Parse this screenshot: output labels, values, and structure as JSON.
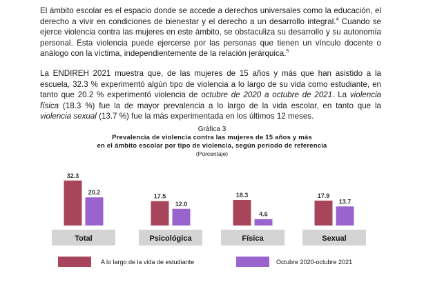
{
  "paragraphs": {
    "p1": {
      "a": "El ámbito escolar es el espacio donde se accede a derechos universales como la educación, el derecho a vivir en condiciones de bienestar y el derecho a un desarrollo integral.",
      "sup1": "4",
      "b": " Cuando se ejerce violencia contra las mujeres en este ámbito, se obstaculiza su desarrollo y su autonomía personal. Esta violencia puede ejercerse por las personas que tienen un vínculo docente o análogo con la víctima, independientemente de la relación jerárquica.",
      "sup2": "5"
    },
    "p2": {
      "a": "La ENDIREH 2021 muestra que, de las mujeres de 15 años y más que han asistido a la escuela, 32.3 % experimentó algún tipo de violencia a lo largo de su vida como estudiante, en tanto que 20.2 % experimentó violencia de ",
      "b_italic": "octubre de 2020 a octubre de 2021",
      "c": ". La ",
      "d_italic": "violencia física",
      "e": " (18.3 %) fue la de mayor prevalencia a lo largo de la vida escolar, en tanto que la ",
      "f_italic": "violencia sexual",
      "g": " (13.7 %) fue la más experimentada en los últimos 12 meses."
    }
  },
  "figure": {
    "label": "Gráfica 3",
    "title_line1": "Prevalencia de violencia contra las mujeres de 15 años y más",
    "title_line2": "en el ámbito escolar por tipo de violencia, según periodo de referencia",
    "unit": "(Porcentaje)"
  },
  "chart_data": {
    "type": "bar",
    "categories": [
      "Total",
      "Psicológica",
      "Física",
      "Sexual"
    ],
    "series": [
      {
        "name": "A lo largo de la vida de estudiante",
        "color": "#a8455a",
        "values": [
          32.3,
          17.5,
          18.3,
          17.9
        ]
      },
      {
        "name": "Octubre 2020-octubre 2021",
        "color": "#9a64cf",
        "values": [
          20.2,
          12.0,
          4.6,
          13.7
        ]
      }
    ],
    "value_labels": [
      [
        "32.3",
        "17.5",
        "18.3",
        "17.9"
      ],
      [
        "20.2",
        "12.0",
        "4.6",
        "13.7"
      ]
    ],
    "ylim": [
      0,
      35
    ],
    "grid": false,
    "legend_position": "bottom",
    "category_box_color": "#d4d4d4"
  }
}
